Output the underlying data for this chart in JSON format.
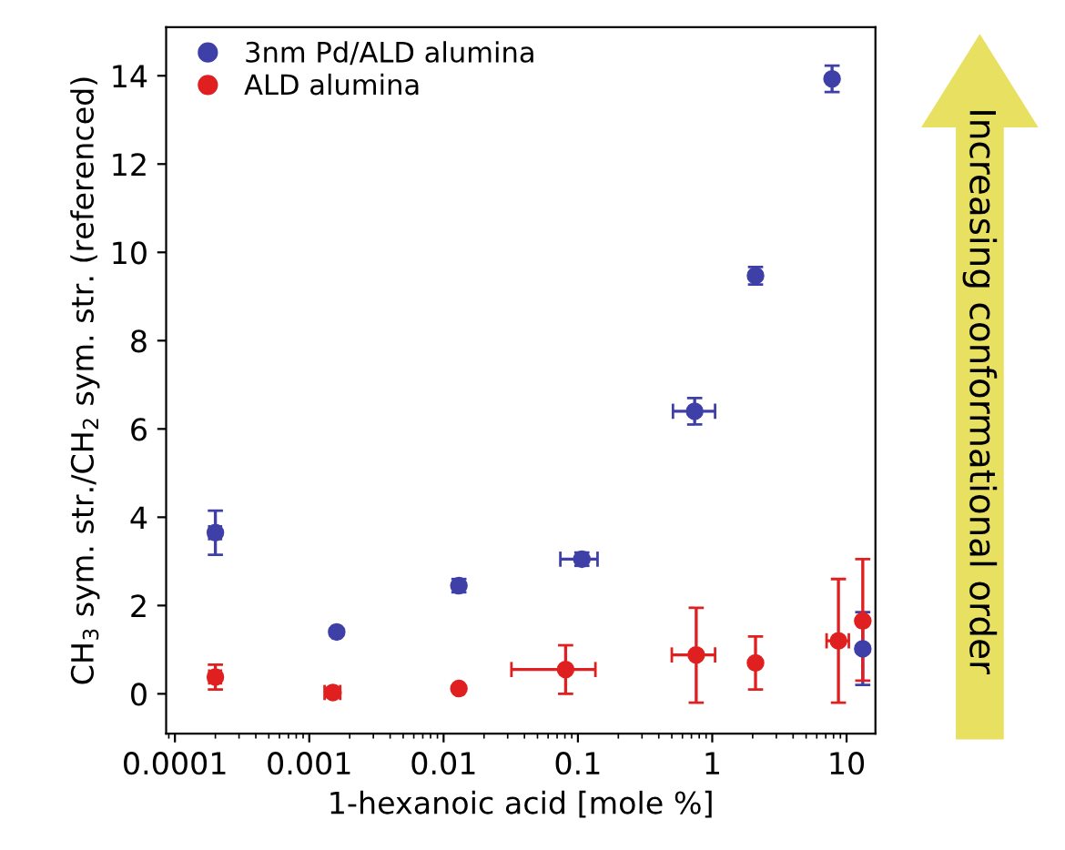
{
  "chart_data": {
    "type": "scatter",
    "xlabel": "1-hexanoic acid [mole %]",
    "ylabel": "CH$_{3}$ sym. str./CH$_{2}$ sym. str. (referenced)",
    "log": "x",
    "xlim": [
      8.6e-05,
      16.4
    ],
    "xticks": [
      0.0001,
      0.001,
      0.01,
      0.1,
      1,
      10
    ],
    "ylim": [
      -0.9,
      15.1
    ],
    "yticks": [
      0,
      2,
      4,
      6,
      8,
      10,
      12,
      14
    ],
    "grid": false,
    "legend": "top left",
    "marker": "circle",
    "annotations": [
      "Increasing conformational order"
    ],
    "series": [
      {
        "name": "3nm Pd/ALD alumina",
        "color": "#3f3fa8",
        "x": [
          0.0002,
          0.0016,
          0.013,
          0.107,
          0.74,
          2.1,
          7.8,
          13.2
        ],
        "values": [
          3.65,
          1.4,
          2.45,
          3.05,
          6.4,
          9.47,
          13.93,
          1.02
        ],
        "errors": [
          0.5,
          0.08,
          0.15,
          0.15,
          0.3,
          0.2,
          0.3,
          [
            0.2,
            1.85
          ]
        ],
        "xerrors": [
          2e-05,
          0.0001,
          0.0008,
          [
            0.074,
            0.14
          ],
          [
            0.51,
            1.05
          ],
          null,
          null,
          null
        ]
      },
      {
        "name": "ALD alumina",
        "color": "#e02020",
        "x": [
          0.0002,
          0.0015,
          0.013,
          0.081,
          0.76,
          2.1,
          8.7,
          13.2
        ],
        "values": [
          0.38,
          0.03,
          0.12,
          0.55,
          0.88,
          0.7,
          1.2,
          1.65
        ],
        "errors": [
          0.28,
          0.1,
          null,
          [
            0.0,
            1.1
          ],
          [
            -0.2,
            1.95
          ],
          [
            0.1,
            1.3
          ],
          [
            -0.2,
            2.6
          ],
          [
            0.3,
            3.05
          ]
        ],
        "xerrors": [
          2e-05,
          0.0002,
          null,
          [
            0.032,
            0.135
          ],
          [
            0.5,
            1.05
          ],
          null,
          [
            7.1,
            10.4
          ],
          null
        ]
      }
    ]
  }
}
